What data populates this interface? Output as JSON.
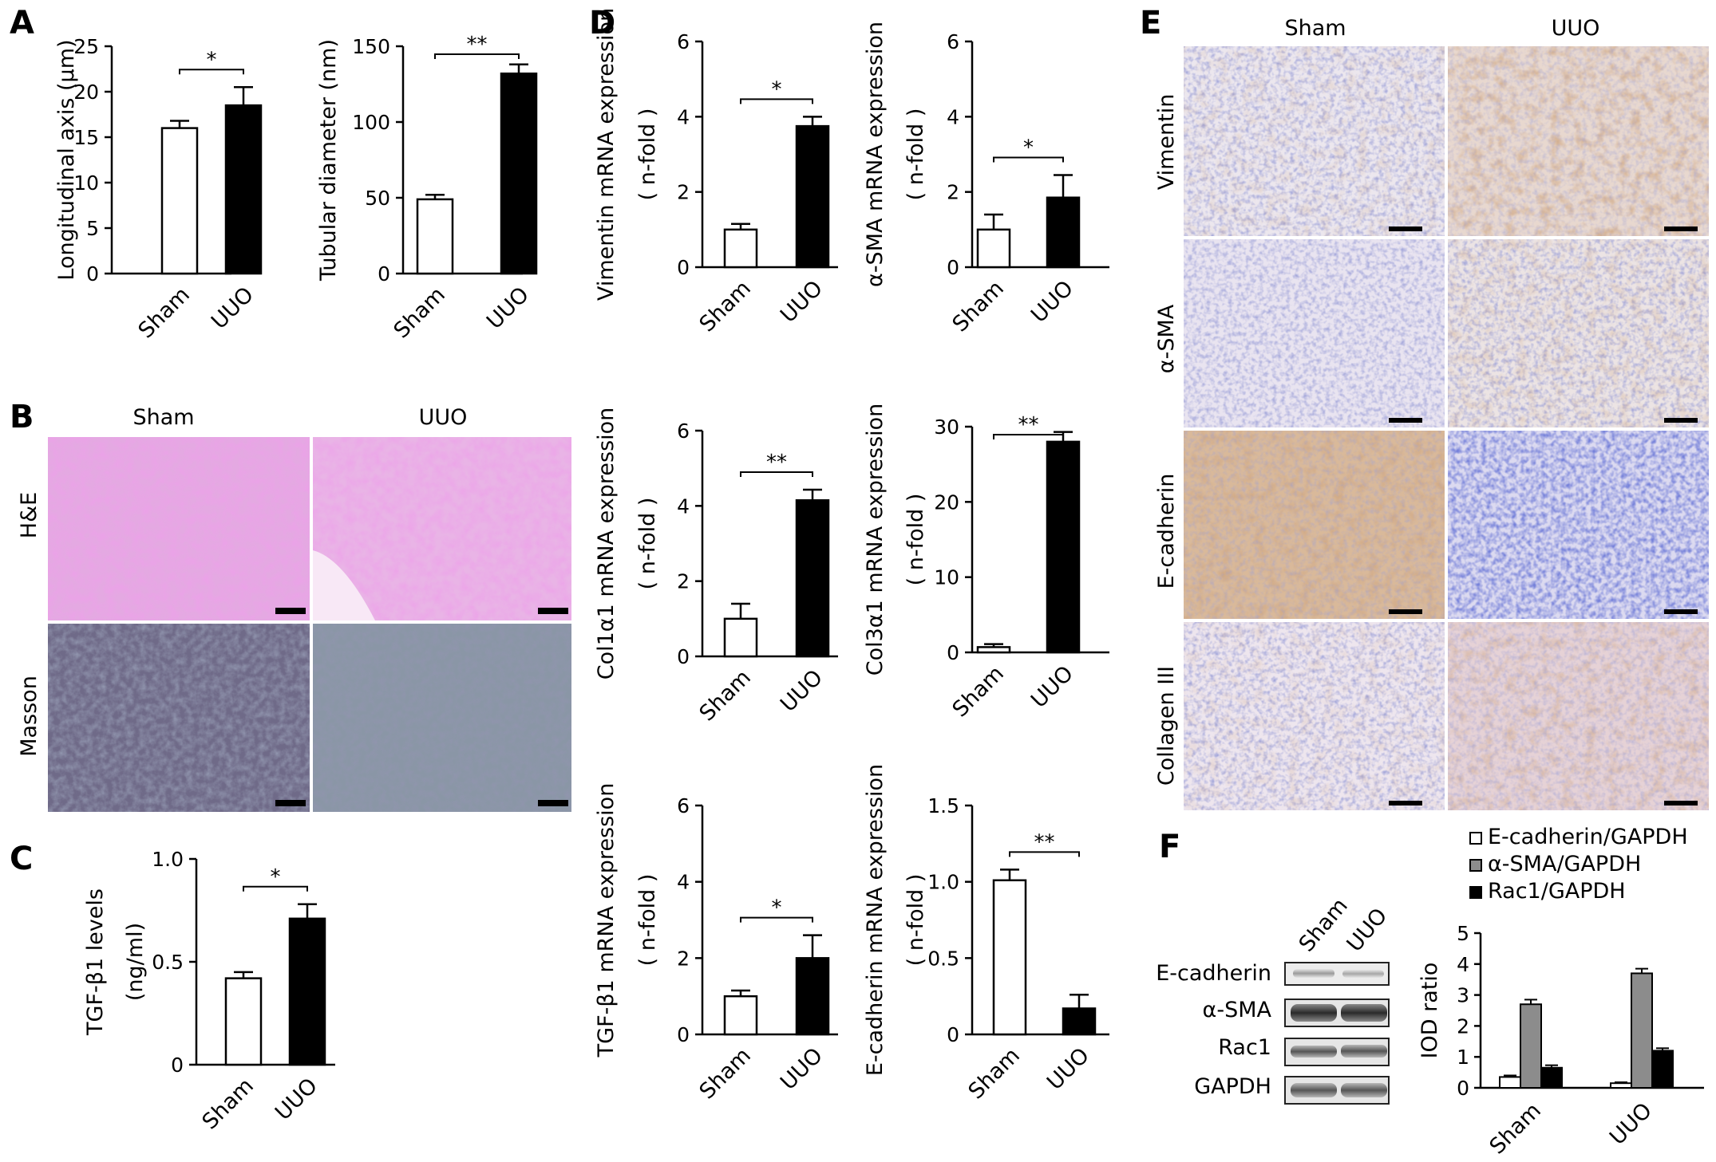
{
  "panels": {
    "A": "A",
    "B": "B",
    "C": "C",
    "D": "D",
    "E": "E",
    "F": "F"
  },
  "colors": {
    "black": "#000000",
    "grey": "#8c8c8c",
    "white": "#ffffff"
  },
  "micrographs": {
    "b": {
      "col1": "Sham",
      "col2": "UUO",
      "row1": "H&E",
      "row2": "Masson"
    },
    "e": {
      "col1": "Sham",
      "col2": "UUO",
      "rows": [
        "Vimentin",
        "α-SMA",
        "E-cadherin",
        "Collagen III"
      ]
    }
  },
  "western_blot": {
    "lanes": [
      "Sham",
      "UUO"
    ],
    "bands": [
      "E-cadherin",
      "α-SMA",
      "Rac1",
      "GAPDH"
    ]
  },
  "chart_data": [
    {
      "id": "a1",
      "type": "bar",
      "categories": [
        "Sham",
        "UUO"
      ],
      "values": [
        16,
        18.5
      ],
      "errors": [
        0.8,
        2
      ],
      "ylabel": "Longitudinal axis (μm)",
      "ylim": [
        0,
        25
      ],
      "yticks": [
        0,
        5,
        10,
        15,
        20,
        25
      ],
      "sig": "*"
    },
    {
      "id": "a2",
      "type": "bar",
      "categories": [
        "Sham",
        "UUO"
      ],
      "values": [
        49,
        132
      ],
      "errors": [
        3,
        6
      ],
      "ylabel": "Tubular diameter  (nm)",
      "ylim": [
        0,
        150
      ],
      "yticks": [
        0,
        50,
        100,
        150
      ],
      "sig": "**"
    },
    {
      "id": "c",
      "type": "bar",
      "categories": [
        "Sham",
        "UUO"
      ],
      "values": [
        0.42,
        0.71
      ],
      "errors": [
        0.03,
        0.07
      ],
      "ylabel": "TGF-β1 levels",
      "ylabel2": "(ng/ml)",
      "ylim": [
        0,
        1.0
      ],
      "yticks": [
        "0",
        "0.5",
        "1.0"
      ],
      "sig": "*"
    },
    {
      "id": "d1",
      "type": "bar",
      "categories": [
        "Sham",
        "UUO"
      ],
      "values": [
        1.0,
        3.75
      ],
      "errors": [
        0.15,
        0.25
      ],
      "ylabel": "Vimentin mRNA expression",
      "ylabel2": "( n-fold )",
      "ylim": [
        0,
        6
      ],
      "yticks": [
        0,
        2,
        4,
        6
      ],
      "sig": "*"
    },
    {
      "id": "d2",
      "type": "bar",
      "categories": [
        "Sham",
        "UUO"
      ],
      "values": [
        1.0,
        1.85
      ],
      "errors": [
        0.4,
        0.6
      ],
      "ylabel": "α-SMA  mRNA expression",
      "ylabel2": "( n-fold )",
      "ylim": [
        0,
        6
      ],
      "yticks": [
        0,
        2,
        4,
        6
      ],
      "sig": "*"
    },
    {
      "id": "d3",
      "type": "bar",
      "categories": [
        "Sham",
        "UUO"
      ],
      "values": [
        1.0,
        4.15
      ],
      "errors": [
        0.4,
        0.28
      ],
      "ylabel": "Col1α1  mRNA expression",
      "ylabel2": "( n-fold )",
      "ylim": [
        0,
        6
      ],
      "yticks": [
        0,
        2,
        4,
        6
      ],
      "sig": "**"
    },
    {
      "id": "d4",
      "type": "bar",
      "categories": [
        "Sham",
        "UUO"
      ],
      "values": [
        0.7,
        28
      ],
      "errors": [
        0.4,
        1.3
      ],
      "ylabel": "Col3α1  mRNA expression",
      "ylabel2": "( n-fold )",
      "ylim": [
        0,
        30
      ],
      "yticks": [
        0,
        10,
        20,
        30
      ],
      "sig": "**"
    },
    {
      "id": "d5",
      "type": "bar",
      "categories": [
        "Sham",
        "UUO"
      ],
      "values": [
        1.0,
        2.0
      ],
      "errors": [
        0.15,
        0.6
      ],
      "ylabel": "TGF-β1 mRNA expression",
      "ylabel2": "( n-fold )",
      "ylim": [
        0,
        6
      ],
      "yticks": [
        0,
        2,
        4,
        6
      ],
      "sig": "*"
    },
    {
      "id": "d6",
      "type": "bar",
      "categories": [
        "Sham",
        "UUO"
      ],
      "values": [
        1.01,
        0.17
      ],
      "errors": [
        0.07,
        0.09
      ],
      "ylabel": "E-cadherin mRNA expression",
      "ylabel2": "( n-fold )",
      "ylim": [
        0,
        1.5
      ],
      "yticks": [
        "0",
        "0.5",
        "1.0",
        "1.5"
      ],
      "sig": "**"
    },
    {
      "id": "f",
      "type": "bar",
      "categories": [
        "Sham",
        "UUO"
      ],
      "series": [
        {
          "name": "E-cadherin/GAPDH",
          "values": [
            0.35,
            0.15
          ],
          "errors": [
            0.05,
            0.03
          ]
        },
        {
          "name": "α-SMA/GAPDH",
          "values": [
            2.7,
            3.7
          ],
          "errors": [
            0.15,
            0.15
          ]
        },
        {
          "name": "Rac1/GAPDH",
          "values": [
            0.65,
            1.2
          ],
          "errors": [
            0.08,
            0.08
          ]
        }
      ],
      "ylabel": "IOD ratio",
      "ylim": [
        0,
        5
      ],
      "yticks": [
        0,
        1,
        2,
        3,
        4,
        5
      ]
    }
  ]
}
